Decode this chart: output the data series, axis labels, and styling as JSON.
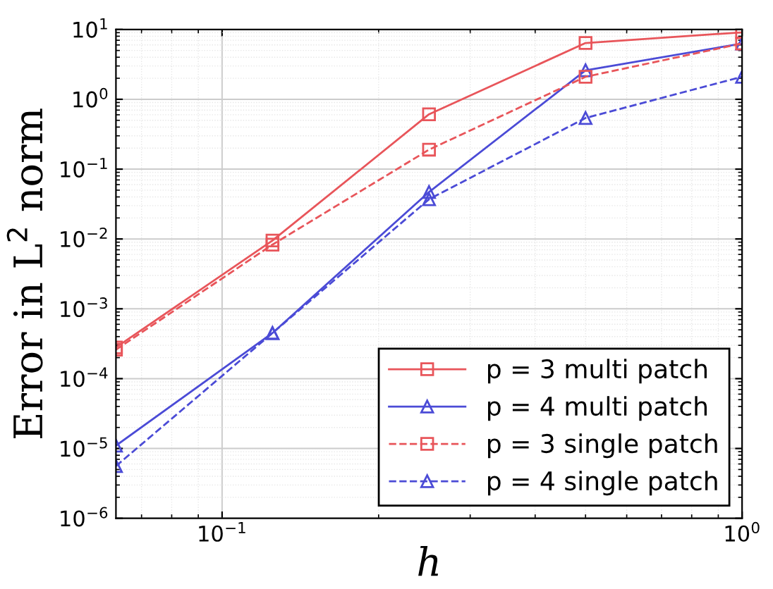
{
  "chart_data": {
    "type": "line",
    "xlabel": "h",
    "ylabel": "Error in L$^{2}$ norm",
    "log": "xy",
    "grid": true,
    "legend": "bottom right",
    "x": [
      0.0625,
      0.125,
      0.25,
      0.5,
      1
    ],
    "xlim": [
      0.0625,
      1
    ],
    "ylim": [
      1e-06,
      10
    ],
    "xticks": [
      {
        "value": 0.1,
        "label": "10$^{−1}$"
      },
      {
        "value": 1,
        "label": "10$^{0}$"
      }
    ],
    "yticks": [
      {
        "value": 1e-06,
        "label": "10$^{−6}$"
      },
      {
        "value": 1e-05,
        "label": "10$^{−5}$"
      },
      {
        "value": 0.0001,
        "label": "10$^{−4}$"
      },
      {
        "value": 0.001,
        "label": "10$^{−3}$"
      },
      {
        "value": 0.01,
        "label": "10$^{−2}$"
      },
      {
        "value": 0.1,
        "label": "10$^{−1}$"
      },
      {
        "value": 1,
        "label": "10$^{0}$"
      },
      {
        "value": 10,
        "label": "10$^{1}$"
      }
    ],
    "series": [
      {
        "name": "p = 3 multi patch",
        "color": "#e8555a",
        "marker": "square",
        "line_style": "solid",
        "values": [
          0.00028,
          0.0095,
          0.61,
          6.4,
          9.1
        ]
      },
      {
        "name": "p = 4 multi patch",
        "color": "#4b4bd6",
        "marker": "triangle",
        "line_style": "solid",
        "values": [
          1.1e-05,
          0.00045,
          0.047,
          2.6,
          6.3
        ]
      },
      {
        "name": "p = 3 single patch",
        "color": "#e8555a",
        "marker": "square",
        "line_style": "dashed",
        "values": [
          0.00026,
          0.0083,
          0.19,
          2.1,
          6.3
        ]
      },
      {
        "name": "p = 4 single patch",
        "color": "#4b4bd6",
        "marker": "triangle",
        "line_style": "dashed",
        "values": [
          5.6e-06,
          0.00045,
          0.037,
          0.54,
          2.1
        ]
      }
    ]
  }
}
